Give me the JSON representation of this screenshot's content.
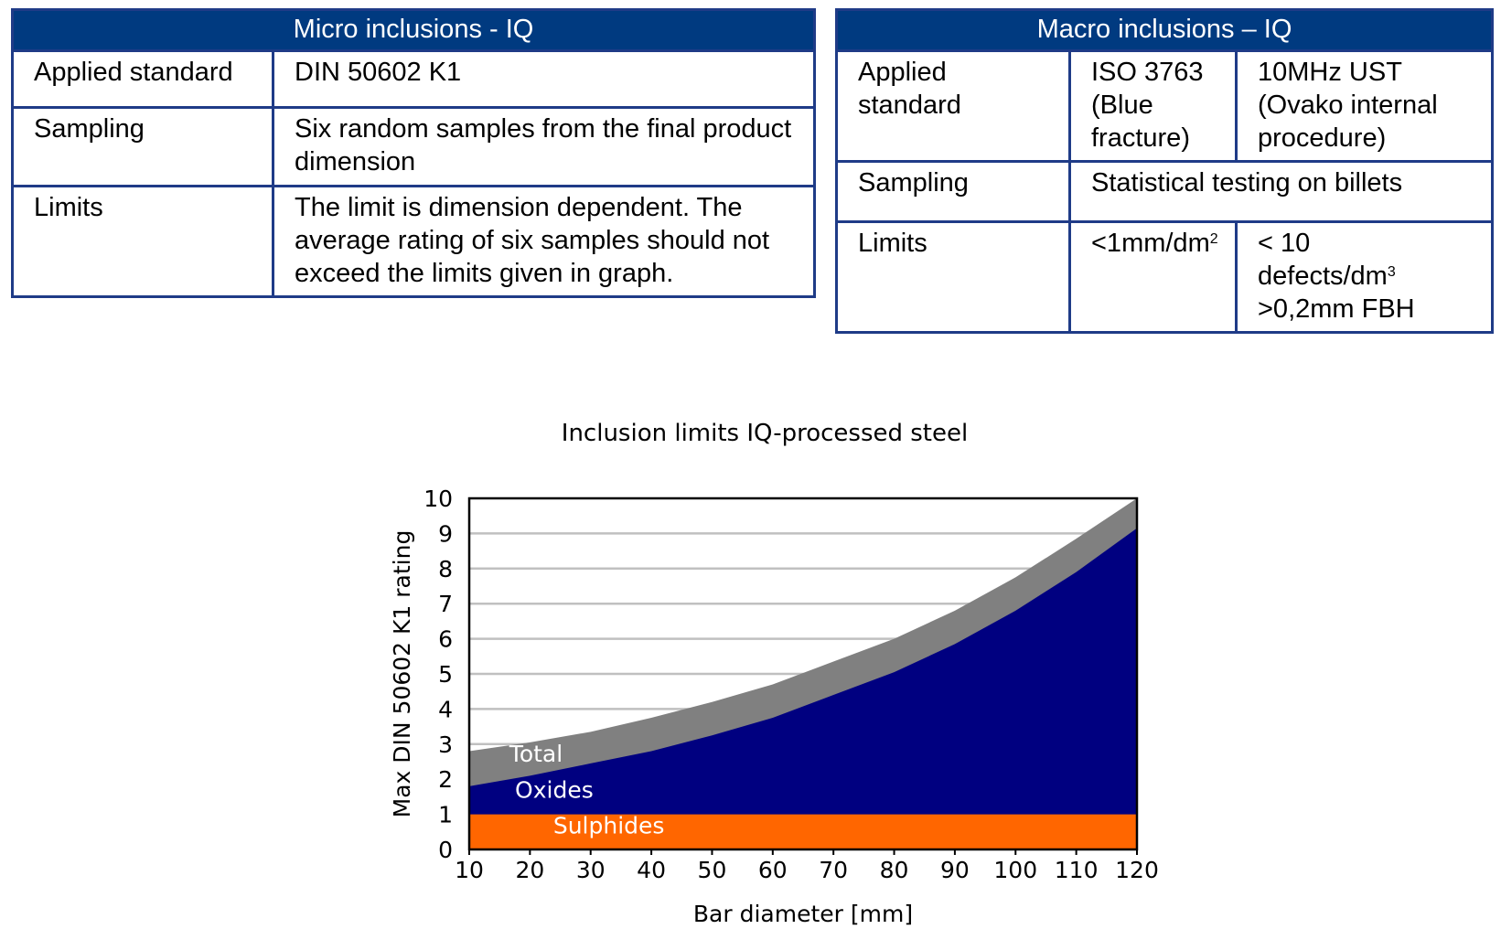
{
  "micro_table": {
    "title": "Micro inclusions - IQ",
    "rows": [
      {
        "label": "Applied standard",
        "value": "DIN 50602 K1"
      },
      {
        "label": "Sampling",
        "value": "Six random samples from the final product dimension"
      },
      {
        "label": "Limits",
        "value": "The limit is dimension dependent. The average rating of six samples should not exceed the limits given in graph."
      }
    ]
  },
  "macro_table": {
    "title": "Macro inclusions – IQ",
    "applied_label": "Applied standard",
    "applied_values": [
      "ISO 3763 (Blue fracture)",
      "10MHz UST (Ovako internal procedure)"
    ],
    "sampling_label": "Sampling",
    "sampling_value": "Statistical testing on billets",
    "limits_label": "Limits",
    "limit_1_base": "<1mm/dm",
    "limit_1_sup": "2",
    "limit_2_line1": "< 10",
    "limit_2_base": "defects/dm",
    "limit_2_sup": "3",
    "limit_2_line3": ">0,2mm FBH"
  },
  "chart_data": {
    "type": "area",
    "title": "Inclusion limits IQ-processed steel",
    "xlabel": "Bar diameter [mm]",
    "ylabel": "Max DIN 50602 K1 rating",
    "x": [
      10,
      20,
      30,
      40,
      50,
      60,
      70,
      80,
      90,
      100,
      110,
      120
    ],
    "xlim": [
      10,
      120
    ],
    "ylim": [
      0,
      10
    ],
    "y_ticks": [
      0,
      1,
      2,
      3,
      4,
      5,
      6,
      7,
      8,
      9,
      10
    ],
    "grid": "horizontal",
    "series": [
      {
        "name": "Sulphides",
        "color": "#ff6600",
        "values": [
          1.0,
          1.0,
          1.0,
          1.0,
          1.0,
          1.0,
          1.0,
          1.0,
          1.0,
          1.0,
          1.0,
          1.0
        ]
      },
      {
        "name": "Oxides",
        "color": "#000080",
        "values": [
          1.8,
          2.1,
          2.45,
          2.8,
          3.25,
          3.75,
          4.4,
          5.05,
          5.85,
          6.8,
          7.9,
          9.15
        ]
      },
      {
        "name": "Total",
        "color": "#808080",
        "values": [
          2.8,
          3.05,
          3.35,
          3.75,
          4.2,
          4.7,
          5.35,
          6.0,
          6.8,
          7.75,
          8.85,
          10.0
        ]
      }
    ]
  }
}
